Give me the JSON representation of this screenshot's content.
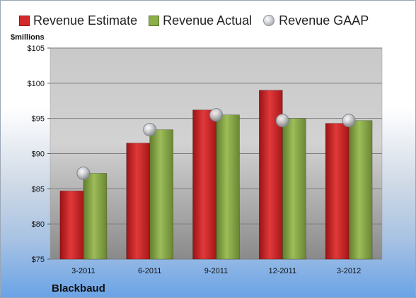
{
  "chart_data": {
    "type": "bar",
    "title": "",
    "xlabel": "",
    "ylabel": "$millions",
    "company": "Blackbaud",
    "categories": [
      "3-2011",
      "6-2011",
      "9-2011",
      "12-2011",
      "3-2012"
    ],
    "series": [
      {
        "name": "Revenue Estimate",
        "kind": "bar",
        "color": "#d42a2c",
        "values": [
          84.7,
          91.5,
          96.2,
          99.0,
          94.3
        ]
      },
      {
        "name": "Revenue Actual",
        "kind": "bar",
        "color": "#8caf48",
        "values": [
          87.2,
          93.4,
          95.5,
          95.0,
          94.7
        ]
      },
      {
        "name": "Revenue GAAP",
        "kind": "marker",
        "color": "#b9bcc1",
        "values": [
          87.2,
          93.4,
          95.5,
          94.7,
          94.7
        ]
      }
    ],
    "ylim": [
      75,
      105
    ],
    "yticks": [
      75,
      80,
      85,
      90,
      95,
      100,
      105
    ],
    "ytick_prefix": "$",
    "grid": true,
    "legend_position": "top"
  }
}
